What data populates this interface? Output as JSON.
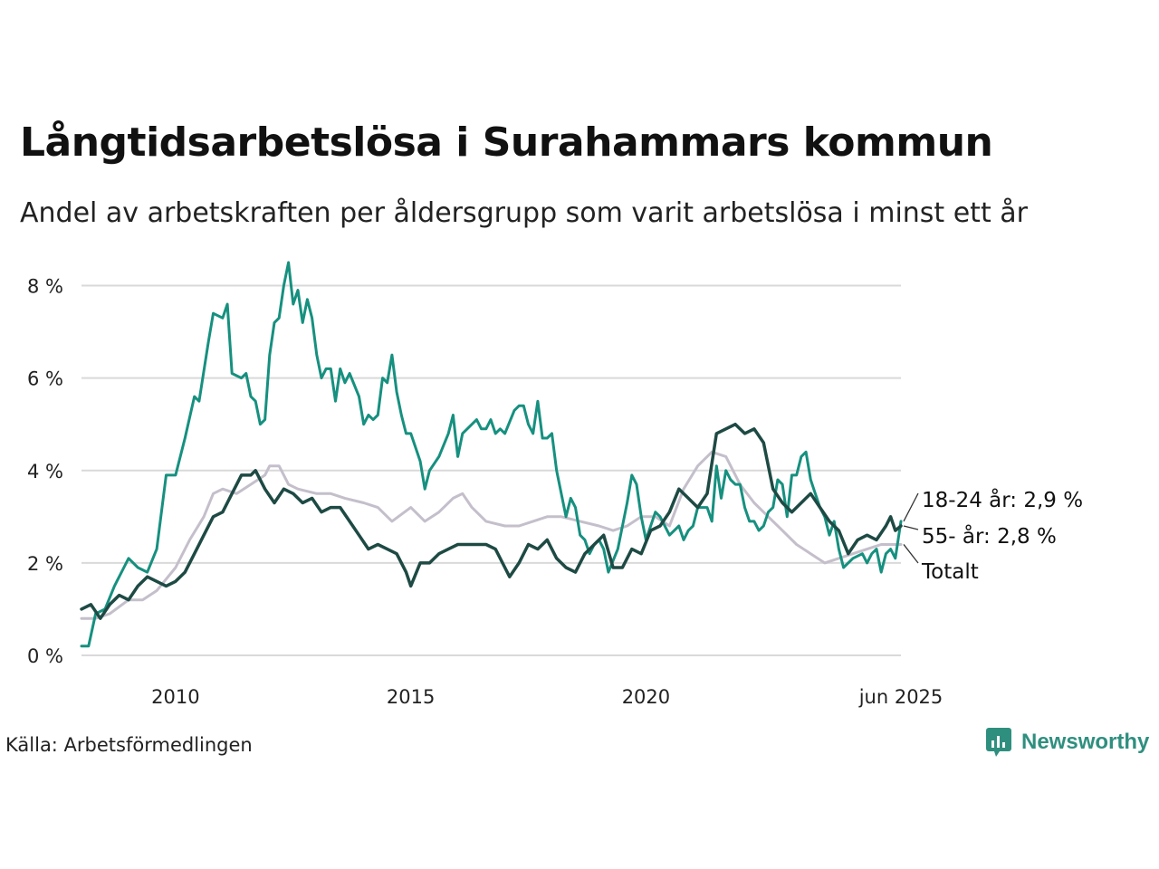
{
  "title": "Långtidsarbetslösa i Surahammars kommun",
  "subtitle": "Andel av arbetskraften per åldersgrupp som varit arbetslösa i minst ett år",
  "source": "Källa: Arbetsförmedlingen",
  "brand": "Newsworthy",
  "colors": {
    "young": "#16907f",
    "old": "#1e4a44",
    "total": "#c4bfcb",
    "grid": "#d9d9d9",
    "brand": "#2f8f7f"
  },
  "chart_data": {
    "type": "line",
    "xlabel": "",
    "ylabel": "",
    "xlim": [
      2008.0,
      2025.42
    ],
    "ylim": [
      0,
      8.5
    ],
    "y_ticks": [
      0,
      2,
      4,
      6,
      8
    ],
    "y_tick_labels": [
      "0 %",
      "2 %",
      "4 %",
      "6 %",
      "8 %"
    ],
    "x_ticks": [
      2010,
      2015,
      2020,
      2025.42
    ],
    "x_tick_labels": [
      "2010",
      "2015",
      "2020",
      "jun 2025"
    ],
    "grid": "horizontal",
    "series": [
      {
        "key": "total",
        "name": "Totalt",
        "end_label": "Totalt",
        "points": [
          [
            2008.0,
            0.8
          ],
          [
            2008.3,
            0.8
          ],
          [
            2008.6,
            0.9
          ],
          [
            2009.0,
            1.2
          ],
          [
            2009.3,
            1.2
          ],
          [
            2009.6,
            1.4
          ],
          [
            2010.0,
            1.9
          ],
          [
            2010.3,
            2.5
          ],
          [
            2010.6,
            3.0
          ],
          [
            2010.8,
            3.5
          ],
          [
            2011.0,
            3.6
          ],
          [
            2011.3,
            3.5
          ],
          [
            2011.6,
            3.7
          ],
          [
            2011.9,
            3.9
          ],
          [
            2012.0,
            4.1
          ],
          [
            2012.2,
            4.1
          ],
          [
            2012.4,
            3.7
          ],
          [
            2012.6,
            3.6
          ],
          [
            2013.0,
            3.5
          ],
          [
            2013.3,
            3.5
          ],
          [
            2013.6,
            3.4
          ],
          [
            2014.0,
            3.3
          ],
          [
            2014.3,
            3.2
          ],
          [
            2014.6,
            2.9
          ],
          [
            2015.0,
            3.2
          ],
          [
            2015.3,
            2.9
          ],
          [
            2015.6,
            3.1
          ],
          [
            2015.9,
            3.4
          ],
          [
            2016.1,
            3.5
          ],
          [
            2016.3,
            3.2
          ],
          [
            2016.6,
            2.9
          ],
          [
            2017.0,
            2.8
          ],
          [
            2017.3,
            2.8
          ],
          [
            2017.6,
            2.9
          ],
          [
            2017.9,
            3.0
          ],
          [
            2018.2,
            3.0
          ],
          [
            2018.6,
            2.9
          ],
          [
            2019.0,
            2.8
          ],
          [
            2019.3,
            2.7
          ],
          [
            2019.6,
            2.8
          ],
          [
            2019.9,
            3.0
          ],
          [
            2020.2,
            3.0
          ],
          [
            2020.5,
            2.8
          ],
          [
            2020.8,
            3.6
          ],
          [
            2021.1,
            4.1
          ],
          [
            2021.4,
            4.4
          ],
          [
            2021.7,
            4.3
          ],
          [
            2022.0,
            3.7
          ],
          [
            2022.3,
            3.3
          ],
          [
            2022.6,
            3.0
          ],
          [
            2022.9,
            2.7
          ],
          [
            2023.2,
            2.4
          ],
          [
            2023.5,
            2.2
          ],
          [
            2023.8,
            2.0
          ],
          [
            2024.1,
            2.1
          ],
          [
            2024.4,
            2.2
          ],
          [
            2024.7,
            2.3
          ],
          [
            2025.0,
            2.4
          ],
          [
            2025.42,
            2.4
          ]
        ]
      },
      {
        "key": "young",
        "name": "18-24 år",
        "end_label": "18-24 år: 2,9 %",
        "points": [
          [
            2008.0,
            0.2
          ],
          [
            2008.15,
            0.2
          ],
          [
            2008.3,
            0.9
          ],
          [
            2008.5,
            1.0
          ],
          [
            2008.7,
            1.5
          ],
          [
            2008.9,
            1.9
          ],
          [
            2009.0,
            2.1
          ],
          [
            2009.2,
            1.9
          ],
          [
            2009.4,
            1.8
          ],
          [
            2009.6,
            2.3
          ],
          [
            2009.8,
            3.9
          ],
          [
            2010.0,
            3.9
          ],
          [
            2010.2,
            4.7
          ],
          [
            2010.4,
            5.6
          ],
          [
            2010.5,
            5.5
          ],
          [
            2010.7,
            6.8
          ],
          [
            2010.8,
            7.4
          ],
          [
            2011.0,
            7.3
          ],
          [
            2011.1,
            7.6
          ],
          [
            2011.2,
            6.1
          ],
          [
            2011.4,
            6.0
          ],
          [
            2011.5,
            6.1
          ],
          [
            2011.6,
            5.6
          ],
          [
            2011.7,
            5.5
          ],
          [
            2011.8,
            5.0
          ],
          [
            2011.9,
            5.1
          ],
          [
            2012.0,
            6.5
          ],
          [
            2012.1,
            7.2
          ],
          [
            2012.2,
            7.3
          ],
          [
            2012.3,
            8.0
          ],
          [
            2012.4,
            8.5
          ],
          [
            2012.5,
            7.6
          ],
          [
            2012.6,
            7.9
          ],
          [
            2012.7,
            7.2
          ],
          [
            2012.8,
            7.7
          ],
          [
            2012.9,
            7.3
          ],
          [
            2013.0,
            6.5
          ],
          [
            2013.1,
            6.0
          ],
          [
            2013.2,
            6.2
          ],
          [
            2013.3,
            6.2
          ],
          [
            2013.4,
            5.5
          ],
          [
            2013.5,
            6.2
          ],
          [
            2013.6,
            5.9
          ],
          [
            2013.7,
            6.1
          ],
          [
            2013.9,
            5.6
          ],
          [
            2014.0,
            5.0
          ],
          [
            2014.1,
            5.2
          ],
          [
            2014.2,
            5.1
          ],
          [
            2014.3,
            5.2
          ],
          [
            2014.4,
            6.0
          ],
          [
            2014.5,
            5.9
          ],
          [
            2014.6,
            6.5
          ],
          [
            2014.7,
            5.7
          ],
          [
            2014.8,
            5.2
          ],
          [
            2014.9,
            4.8
          ],
          [
            2015.0,
            4.8
          ],
          [
            2015.2,
            4.2
          ],
          [
            2015.3,
            3.6
          ],
          [
            2015.4,
            4.0
          ],
          [
            2015.6,
            4.3
          ],
          [
            2015.8,
            4.8
          ],
          [
            2015.9,
            5.2
          ],
          [
            2016.0,
            4.3
          ],
          [
            2016.1,
            4.8
          ],
          [
            2016.3,
            5.0
          ],
          [
            2016.4,
            5.1
          ],
          [
            2016.5,
            4.9
          ],
          [
            2016.6,
            4.9
          ],
          [
            2016.7,
            5.1
          ],
          [
            2016.8,
            4.8
          ],
          [
            2016.9,
            4.9
          ],
          [
            2017.0,
            4.8
          ],
          [
            2017.2,
            5.3
          ],
          [
            2017.3,
            5.4
          ],
          [
            2017.4,
            5.4
          ],
          [
            2017.5,
            5.0
          ],
          [
            2017.6,
            4.8
          ],
          [
            2017.7,
            5.5
          ],
          [
            2017.8,
            4.7
          ],
          [
            2017.9,
            4.7
          ],
          [
            2018.0,
            4.8
          ],
          [
            2018.1,
            4.0
          ],
          [
            2018.2,
            3.5
          ],
          [
            2018.3,
            3.0
          ],
          [
            2018.4,
            3.4
          ],
          [
            2018.5,
            3.2
          ],
          [
            2018.6,
            2.6
          ],
          [
            2018.7,
            2.5
          ],
          [
            2018.8,
            2.2
          ],
          [
            2018.9,
            2.4
          ],
          [
            2019.0,
            2.5
          ],
          [
            2019.1,
            2.3
          ],
          [
            2019.2,
            1.8
          ],
          [
            2019.4,
            2.3
          ],
          [
            2019.6,
            3.3
          ],
          [
            2019.7,
            3.9
          ],
          [
            2019.8,
            3.7
          ],
          [
            2019.9,
            3.0
          ],
          [
            2020.0,
            2.5
          ],
          [
            2020.2,
            3.1
          ],
          [
            2020.3,
            3.0
          ],
          [
            2020.5,
            2.6
          ],
          [
            2020.7,
            2.8
          ],
          [
            2020.8,
            2.5
          ],
          [
            2020.9,
            2.7
          ],
          [
            2021.0,
            2.8
          ],
          [
            2021.1,
            3.2
          ],
          [
            2021.3,
            3.2
          ],
          [
            2021.4,
            2.9
          ],
          [
            2021.5,
            4.1
          ],
          [
            2021.6,
            3.4
          ],
          [
            2021.7,
            4.0
          ],
          [
            2021.8,
            3.8
          ],
          [
            2021.9,
            3.7
          ],
          [
            2022.0,
            3.7
          ],
          [
            2022.1,
            3.2
          ],
          [
            2022.2,
            2.9
          ],
          [
            2022.3,
            2.9
          ],
          [
            2022.4,
            2.7
          ],
          [
            2022.5,
            2.8
          ],
          [
            2022.6,
            3.1
          ],
          [
            2022.7,
            3.2
          ],
          [
            2022.8,
            3.8
          ],
          [
            2022.9,
            3.7
          ],
          [
            2023.0,
            3.0
          ],
          [
            2023.1,
            3.9
          ],
          [
            2023.2,
            3.9
          ],
          [
            2023.3,
            4.3
          ],
          [
            2023.4,
            4.4
          ],
          [
            2023.5,
            3.8
          ],
          [
            2023.6,
            3.5
          ],
          [
            2023.7,
            3.2
          ],
          [
            2023.8,
            3.0
          ],
          [
            2023.9,
            2.6
          ],
          [
            2024.0,
            2.9
          ],
          [
            2024.1,
            2.3
          ],
          [
            2024.2,
            1.9
          ],
          [
            2024.4,
            2.1
          ],
          [
            2024.6,
            2.2
          ],
          [
            2024.7,
            2.0
          ],
          [
            2024.8,
            2.2
          ],
          [
            2024.9,
            2.3
          ],
          [
            2025.0,
            1.8
          ],
          [
            2025.1,
            2.2
          ],
          [
            2025.2,
            2.3
          ],
          [
            2025.3,
            2.1
          ],
          [
            2025.42,
            2.9
          ]
        ]
      },
      {
        "key": "old",
        "name": "55- år",
        "end_label": "55- år: 2,8 %",
        "points": [
          [
            2008.0,
            1.0
          ],
          [
            2008.2,
            1.1
          ],
          [
            2008.4,
            0.8
          ],
          [
            2008.6,
            1.1
          ],
          [
            2008.8,
            1.3
          ],
          [
            2009.0,
            1.2
          ],
          [
            2009.2,
            1.5
          ],
          [
            2009.4,
            1.7
          ],
          [
            2009.6,
            1.6
          ],
          [
            2009.8,
            1.5
          ],
          [
            2010.0,
            1.6
          ],
          [
            2010.2,
            1.8
          ],
          [
            2010.4,
            2.2
          ],
          [
            2010.6,
            2.6
          ],
          [
            2010.8,
            3.0
          ],
          [
            2011.0,
            3.1
          ],
          [
            2011.2,
            3.5
          ],
          [
            2011.4,
            3.9
          ],
          [
            2011.6,
            3.9
          ],
          [
            2011.7,
            4.0
          ],
          [
            2011.9,
            3.6
          ],
          [
            2012.1,
            3.3
          ],
          [
            2012.3,
            3.6
          ],
          [
            2012.5,
            3.5
          ],
          [
            2012.7,
            3.3
          ],
          [
            2012.9,
            3.4
          ],
          [
            2013.1,
            3.1
          ],
          [
            2013.3,
            3.2
          ],
          [
            2013.5,
            3.2
          ],
          [
            2013.7,
            2.9
          ],
          [
            2013.9,
            2.6
          ],
          [
            2014.1,
            2.3
          ],
          [
            2014.3,
            2.4
          ],
          [
            2014.5,
            2.3
          ],
          [
            2014.7,
            2.2
          ],
          [
            2014.9,
            1.8
          ],
          [
            2015.0,
            1.5
          ],
          [
            2015.2,
            2.0
          ],
          [
            2015.4,
            2.0
          ],
          [
            2015.6,
            2.2
          ],
          [
            2015.8,
            2.3
          ],
          [
            2016.0,
            2.4
          ],
          [
            2016.2,
            2.4
          ],
          [
            2016.4,
            2.4
          ],
          [
            2016.6,
            2.4
          ],
          [
            2016.8,
            2.3
          ],
          [
            2017.0,
            1.9
          ],
          [
            2017.1,
            1.7
          ],
          [
            2017.3,
            2.0
          ],
          [
            2017.5,
            2.4
          ],
          [
            2017.7,
            2.3
          ],
          [
            2017.9,
            2.5
          ],
          [
            2018.1,
            2.1
          ],
          [
            2018.3,
            1.9
          ],
          [
            2018.5,
            1.8
          ],
          [
            2018.7,
            2.2
          ],
          [
            2018.9,
            2.4
          ],
          [
            2019.1,
            2.6
          ],
          [
            2019.3,
            1.9
          ],
          [
            2019.5,
            1.9
          ],
          [
            2019.7,
            2.3
          ],
          [
            2019.9,
            2.2
          ],
          [
            2020.1,
            2.7
          ],
          [
            2020.3,
            2.8
          ],
          [
            2020.5,
            3.1
          ],
          [
            2020.7,
            3.6
          ],
          [
            2020.9,
            3.4
          ],
          [
            2021.1,
            3.2
          ],
          [
            2021.3,
            3.5
          ],
          [
            2021.5,
            4.8
          ],
          [
            2021.7,
            4.9
          ],
          [
            2021.9,
            5.0
          ],
          [
            2022.1,
            4.8
          ],
          [
            2022.3,
            4.9
          ],
          [
            2022.5,
            4.6
          ],
          [
            2022.7,
            3.6
          ],
          [
            2022.9,
            3.3
          ],
          [
            2023.1,
            3.1
          ],
          [
            2023.3,
            3.3
          ],
          [
            2023.5,
            3.5
          ],
          [
            2023.7,
            3.2
          ],
          [
            2023.9,
            2.9
          ],
          [
            2024.1,
            2.7
          ],
          [
            2024.3,
            2.2
          ],
          [
            2024.5,
            2.5
          ],
          [
            2024.7,
            2.6
          ],
          [
            2024.9,
            2.5
          ],
          [
            2025.1,
            2.8
          ],
          [
            2025.2,
            3.0
          ],
          [
            2025.3,
            2.7
          ],
          [
            2025.42,
            2.8
          ]
        ]
      }
    ]
  }
}
